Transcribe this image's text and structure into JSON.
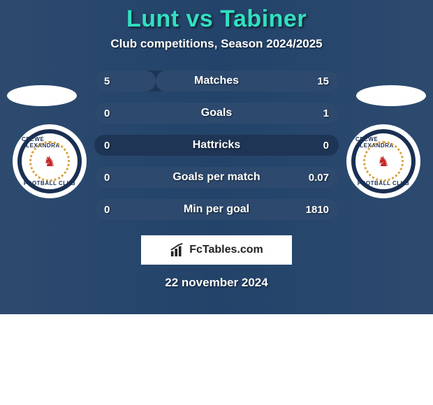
{
  "card": {
    "background_gradient": [
      "#2d4a6e",
      "#23436a",
      "#2d4a6e"
    ],
    "title": {
      "text": "Lunt vs Tabiner",
      "color": "#31e0c0",
      "fontsize": 34
    },
    "subtitle": {
      "text": "Club competitions, Season 2024/2025",
      "fontsize": 17
    },
    "date": {
      "text": "22 november 2024",
      "fontsize": 17
    }
  },
  "stats": {
    "row_bg": "#1e3555",
    "fill_left_color": "#2d4a6e",
    "fill_right_color": "#2d4a6e",
    "rows": [
      {
        "label": "Matches",
        "left": "5",
        "right": "15",
        "left_pct": 25,
        "right_pct": 75
      },
      {
        "label": "Goals",
        "left": "0",
        "right": "1",
        "left_pct": 0,
        "right_pct": 100
      },
      {
        "label": "Hattricks",
        "left": "0",
        "right": "0",
        "left_pct": 0,
        "right_pct": 0
      },
      {
        "label": "Goals per match",
        "left": "0",
        "right": "0.07",
        "left_pct": 0,
        "right_pct": 100
      },
      {
        "label": "Min per goal",
        "left": "0",
        "right": "1810",
        "left_pct": 0,
        "right_pct": 100
      }
    ]
  },
  "badges": {
    "left": {
      "club": "CREWE ALEXANDRA",
      "sub": "FOOTBALL CLUB",
      "ring": "#1a2f52",
      "wreath": "#d9a441",
      "lion": "#c62828"
    },
    "right": {
      "club": "CREWE ALEXANDRA",
      "sub": "FOOTBALL CLUB",
      "ring": "#1a2f52",
      "wreath": "#d9a441",
      "lion": "#c62828"
    }
  },
  "watermark": {
    "text": "FcTables.com",
    "bg": "#ffffff",
    "color": "#222222"
  }
}
